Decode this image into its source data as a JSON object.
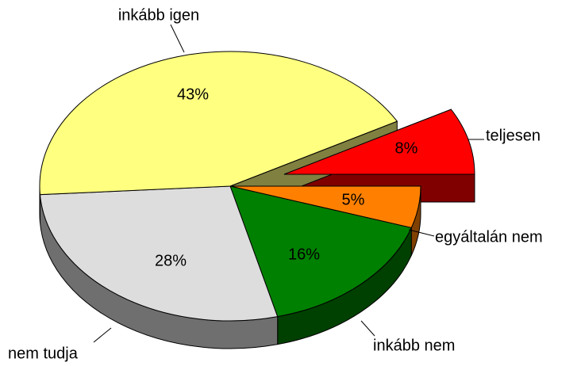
{
  "chart_data": {
    "type": "pie",
    "categories": [
      "teljesen",
      "egyáltalán nem",
      "inkább nem",
      "nem tudja",
      "inkább igen"
    ],
    "values": [
      8,
      5,
      16,
      28,
      43
    ],
    "value_labels": [
      "8%",
      "5%",
      "16%",
      "28%",
      "43%"
    ],
    "colors": [
      "#ff0000",
      "#ff8000",
      "#008000",
      "#dddddd",
      "#ffff80"
    ]
  }
}
